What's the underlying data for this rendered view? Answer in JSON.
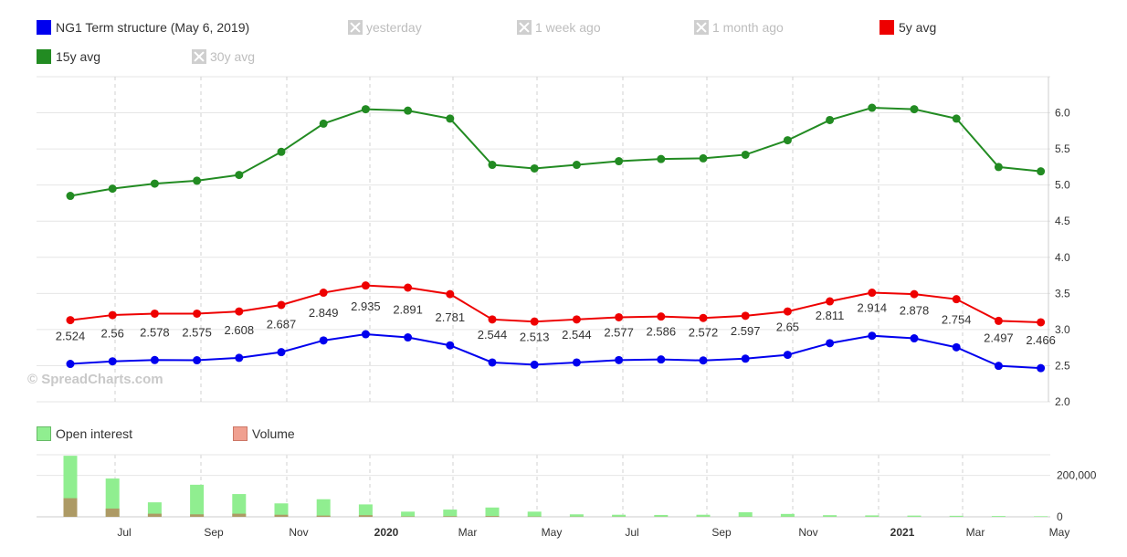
{
  "legend_top": [
    {
      "label": "NG1 Term structure (May 6, 2019)",
      "color": "#0000ee",
      "enabled": true
    },
    {
      "label": "yesterday",
      "enabled": false
    },
    {
      "label": "1 week ago",
      "enabled": false
    },
    {
      "label": "1 month ago",
      "enabled": false
    },
    {
      "label": "5y avg",
      "color": "#ee0000",
      "enabled": true
    },
    {
      "label": "15y avg",
      "color": "#228b22",
      "enabled": true
    },
    {
      "label": "30y avg",
      "enabled": false
    }
  ],
  "legend_bottom": [
    {
      "label": "Open interest",
      "color": "#90ee90"
    },
    {
      "label": "Volume",
      "color": "#f0a090"
    }
  ],
  "watermark": "© SpreadCharts.com",
  "colors": {
    "term": "#0000ee",
    "avg5": "#ee0000",
    "avg15": "#228b22",
    "oi": "#90ee90",
    "volume": "#b09060",
    "grid": "#e6e6e6"
  },
  "chart_data": [
    {
      "type": "line",
      "x_ticks": [
        "Jul",
        "Sep",
        "Nov",
        "2020",
        "Mar",
        "May",
        "Jul",
        "Sep",
        "Nov",
        "2021",
        "Mar",
        "May"
      ],
      "y_ticks": [
        "2.0",
        "2.5",
        "3.0",
        "3.5",
        "4.0",
        "4.5",
        "5.0",
        "5.5",
        "6.0"
      ],
      "ylim": [
        2.0,
        6.5
      ],
      "grid": true,
      "x": [
        "2019-06",
        "2019-07",
        "2019-08",
        "2019-09",
        "2019-10",
        "2019-11",
        "2019-12",
        "2020-01",
        "2020-02",
        "2020-03",
        "2020-04",
        "2020-05",
        "2020-06",
        "2020-07",
        "2020-08",
        "2020-09",
        "2020-10",
        "2020-11",
        "2020-12",
        "2021-01",
        "2021-02",
        "2021-03",
        "2021-04",
        "2021-05"
      ],
      "series": [
        {
          "name": "NG1 Term structure (May 6, 2019)",
          "values": [
            2.524,
            2.56,
            2.578,
            2.575,
            2.608,
            2.687,
            2.849,
            2.935,
            2.891,
            2.781,
            2.544,
            2.513,
            2.544,
            2.577,
            2.586,
            2.572,
            2.597,
            2.65,
            2.811,
            2.914,
            2.878,
            2.754,
            2.497,
            2.466
          ],
          "labels": [
            "2.524",
            "2.56",
            "2.578",
            "2.575",
            "2.608",
            "2.687",
            "2.849",
            "2.935",
            "2.891",
            "2.781",
            "2.544",
            "2.513",
            "2.544",
            "2.577",
            "2.586",
            "2.572",
            "2.597",
            "2.65",
            "2.811",
            "2.914",
            "2.878",
            "2.754",
            "2.497",
            "2.466"
          ]
        },
        {
          "name": "5y avg",
          "values": [
            3.13,
            3.2,
            3.22,
            3.22,
            3.25,
            3.34,
            3.51,
            3.61,
            3.58,
            3.49,
            3.14,
            3.11,
            3.14,
            3.17,
            3.18,
            3.16,
            3.19,
            3.25,
            3.39,
            3.51,
            3.49,
            3.42,
            3.12,
            3.1
          ]
        },
        {
          "name": "15y avg",
          "values": [
            4.85,
            4.95,
            5.02,
            5.06,
            5.14,
            5.46,
            5.85,
            6.05,
            6.03,
            5.92,
            5.28,
            5.23,
            5.28,
            5.33,
            5.36,
            5.37,
            5.42,
            5.62,
            5.9,
            6.07,
            6.05,
            5.92,
            5.25,
            5.19
          ]
        }
      ]
    },
    {
      "type": "bar",
      "x_ticks": [
        "Jul",
        "Sep",
        "Nov",
        "2020",
        "Mar",
        "May",
        "Jul",
        "Sep",
        "Nov",
        "2021",
        "Mar",
        "May"
      ],
      "y_ticks": [
        "0",
        "200,000"
      ],
      "ylim": [
        0,
        300000
      ],
      "series": [
        {
          "name": "Open interest",
          "values": [
            295000,
            185000,
            70000,
            155000,
            110000,
            65000,
            85000,
            60000,
            25000,
            35000,
            45000,
            25000,
            12000,
            10000,
            9000,
            10000,
            22000,
            14000,
            8000,
            7000,
            6000,
            5000,
            4000,
            3000
          ]
        },
        {
          "name": "Volume",
          "values": [
            90000,
            40000,
            15000,
            12000,
            15000,
            10000,
            6000,
            8000,
            2000,
            3000,
            4000,
            1500,
            1000,
            800,
            700,
            600,
            800,
            500,
            300,
            300,
            200,
            200,
            100,
            100
          ]
        }
      ]
    }
  ]
}
